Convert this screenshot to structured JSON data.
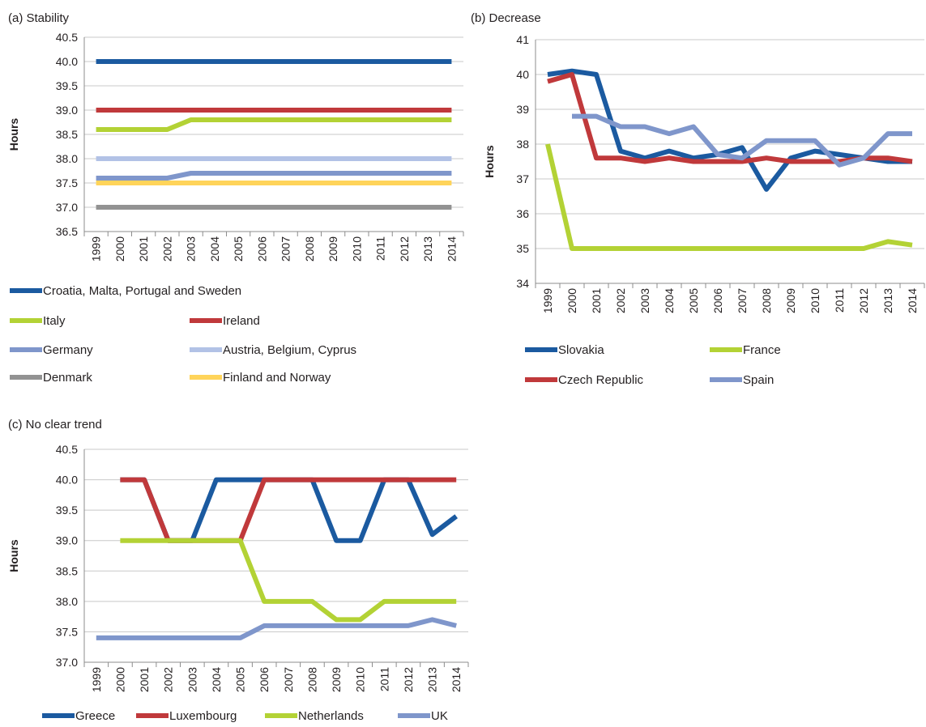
{
  "chart_data": [
    {
      "type": "line",
      "title": "(a) Stability",
      "xlabel": "",
      "ylabel": "Hours",
      "ylim": [
        36.5,
        40.5
      ],
      "yticks": [
        "40.5",
        "40.0",
        "39.5",
        "39.0",
        "38.5",
        "38.0",
        "37.5",
        "37.0",
        "36.5"
      ],
      "categories": [
        "1999",
        "2000",
        "2001",
        "2002",
        "2003",
        "2004",
        "2005",
        "2006",
        "2007",
        "2008",
        "2009",
        "2010",
        "2011",
        "2012",
        "2013",
        "2014"
      ],
      "grid": true,
      "legend_position": "bottom",
      "series": [
        {
          "name": "Croatia, Malta, Portugal and Sweden",
          "color": "#1b5aa0",
          "values": [
            40.0,
            40.0,
            40.0,
            40.0,
            40.0,
            40.0,
            40.0,
            40.0,
            40.0,
            40.0,
            40.0,
            40.0,
            40.0,
            40.0,
            40.0,
            40.0
          ]
        },
        {
          "name": "Italy",
          "color": "#b3d235",
          "values": [
            38.6,
            38.6,
            38.6,
            38.6,
            38.8,
            38.8,
            38.8,
            38.8,
            38.8,
            38.8,
            38.8,
            38.8,
            38.8,
            38.8,
            38.8,
            38.8
          ]
        },
        {
          "name": "Ireland",
          "color": "#c0393b",
          "values": [
            39.0,
            39.0,
            39.0,
            39.0,
            39.0,
            39.0,
            39.0,
            39.0,
            39.0,
            39.0,
            39.0,
            39.0,
            39.0,
            39.0,
            39.0,
            39.0
          ]
        },
        {
          "name": "Germany",
          "color": "#7f96cb",
          "values": [
            37.6,
            37.6,
            37.6,
            37.6,
            37.7,
            37.7,
            37.7,
            37.7,
            37.7,
            37.7,
            37.7,
            37.7,
            37.7,
            37.7,
            37.7,
            37.7
          ]
        },
        {
          "name": "Austria, Belgium, Cyprus",
          "color": "#b2c2e6",
          "values": [
            38.0,
            38.0,
            38.0,
            38.0,
            38.0,
            38.0,
            38.0,
            38.0,
            38.0,
            38.0,
            38.0,
            38.0,
            38.0,
            38.0,
            38.0,
            38.0
          ]
        },
        {
          "name": "Denmark",
          "color": "#929292",
          "values": [
            37.0,
            37.0,
            37.0,
            37.0,
            37.0,
            37.0,
            37.0,
            37.0,
            37.0,
            37.0,
            37.0,
            37.0,
            37.0,
            37.0,
            37.0,
            37.0
          ]
        },
        {
          "name": "Finland and Norway",
          "color": "#ffd45a",
          "values": [
            37.5,
            37.5,
            37.5,
            37.5,
            37.5,
            37.5,
            37.5,
            37.5,
            37.5,
            37.5,
            37.5,
            37.5,
            37.5,
            37.5,
            37.5,
            37.5
          ]
        }
      ]
    },
    {
      "type": "line",
      "title": "(b) Decrease",
      "xlabel": "",
      "ylabel": "Hours",
      "ylim": [
        34,
        41
      ],
      "yticks": [
        "41",
        "40",
        "39",
        "38",
        "37",
        "36",
        "35",
        "34"
      ],
      "categories": [
        "1999",
        "2000",
        "2001",
        "2002",
        "2003",
        "2004",
        "2005",
        "2006",
        "2007",
        "2008",
        "2009",
        "2010",
        "2011",
        "2012",
        "2013",
        "2014"
      ],
      "grid": true,
      "legend_position": "bottom",
      "series": [
        {
          "name": "Slovakia",
          "color": "#1b5aa0",
          "values": [
            40.0,
            40.1,
            40.0,
            37.8,
            37.6,
            37.8,
            37.6,
            37.7,
            37.9,
            36.7,
            37.6,
            37.8,
            37.7,
            37.6,
            37.5,
            37.5
          ]
        },
        {
          "name": "France",
          "color": "#b3d235",
          "values": [
            38.0,
            35.0,
            35.0,
            35.0,
            35.0,
            35.0,
            35.0,
            35.0,
            35.0,
            35.0,
            35.0,
            35.0,
            35.0,
            35.0,
            35.2,
            35.1
          ]
        },
        {
          "name": "Czech Republic",
          "color": "#c0393b",
          "values": [
            39.8,
            40.0,
            37.6,
            37.6,
            37.5,
            37.6,
            37.5,
            37.5,
            37.5,
            37.6,
            37.5,
            37.5,
            37.5,
            37.6,
            37.6,
            37.5
          ]
        },
        {
          "name": "Spain",
          "color": "#7f96cb",
          "values": [
            null,
            38.8,
            38.8,
            38.5,
            38.5,
            38.3,
            38.5,
            37.7,
            37.6,
            38.1,
            38.1,
            38.1,
            37.4,
            37.6,
            38.3,
            38.3
          ]
        }
      ]
    },
    {
      "type": "line",
      "title": "(c) No clear trend",
      "xlabel": "",
      "ylabel": "Hours",
      "ylim": [
        37.0,
        40.5
      ],
      "yticks": [
        "40.5",
        "40.0",
        "39.5",
        "39.0",
        "38.5",
        "38.0",
        "37.5",
        "37.0"
      ],
      "categories": [
        "1999",
        "2000",
        "2001",
        "2002",
        "2003",
        "2004",
        "2005",
        "2006",
        "2007",
        "2008",
        "2009",
        "2010",
        "2011",
        "2012",
        "2013",
        "2014"
      ],
      "grid": true,
      "legend_position": "bottom",
      "series": [
        {
          "name": "Greece",
          "color": "#1b5aa0",
          "values": [
            null,
            40.0,
            40.0,
            39.0,
            39.0,
            40.0,
            40.0,
            40.0,
            40.0,
            40.0,
            39.0,
            39.0,
            40.0,
            40.0,
            39.1,
            39.4
          ]
        },
        {
          "name": "Luxembourg",
          "color": "#c0393b",
          "values": [
            null,
            40.0,
            40.0,
            39.0,
            39.0,
            39.0,
            39.0,
            40.0,
            40.0,
            40.0,
            40.0,
            40.0,
            40.0,
            40.0,
            40.0,
            40.0
          ]
        },
        {
          "name": "Netherlands",
          "color": "#b3d235",
          "values": [
            null,
            39.0,
            39.0,
            39.0,
            39.0,
            39.0,
            39.0,
            38.0,
            38.0,
            38.0,
            37.7,
            37.7,
            38.0,
            38.0,
            38.0,
            38.0
          ]
        },
        {
          "name": "UK",
          "color": "#7f96cb",
          "values": [
            37.4,
            37.4,
            37.4,
            37.4,
            37.4,
            37.4,
            37.4,
            37.6,
            37.6,
            37.6,
            37.6,
            37.6,
            37.6,
            37.6,
            37.7,
            37.6
          ]
        }
      ]
    }
  ]
}
